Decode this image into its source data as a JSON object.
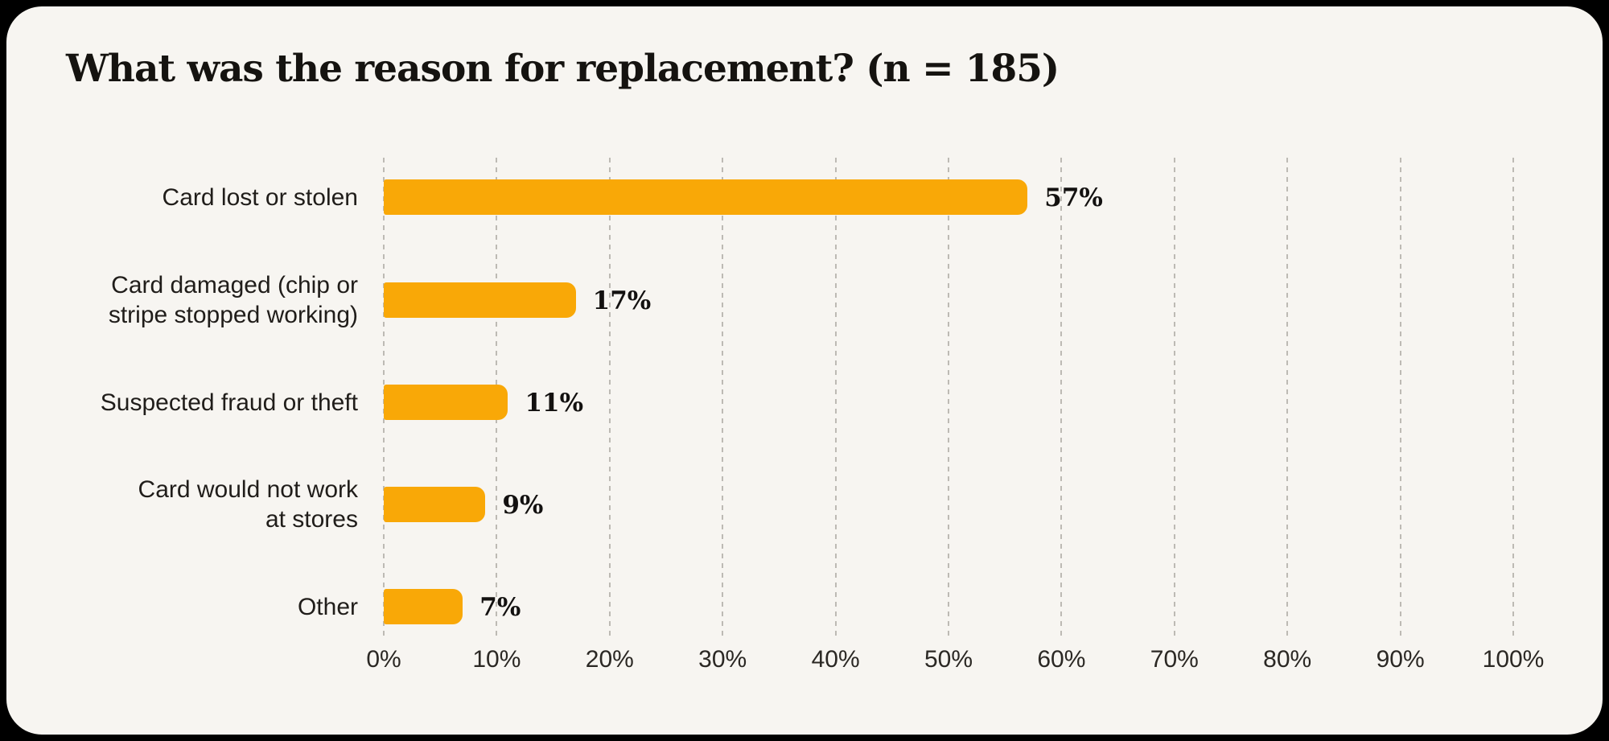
{
  "title": "What was the reason for replacement? (n = 185)",
  "colors": {
    "page_background": "#000000",
    "card_background": "#F7F5F1",
    "bar": "#F9A807",
    "gridline": "#BDBAB4",
    "text": "#151310"
  },
  "chart_data": {
    "type": "bar",
    "orientation": "horizontal",
    "title": "What was the reason for replacement? (n = 185)",
    "categories": [
      "Card lost or stolen",
      "Card damaged (chip or stripe stopped working)",
      "Suspected fraud or theft",
      "Card would not work at stores",
      "Other"
    ],
    "category_display_lines": [
      [
        "Card lost or stolen"
      ],
      [
        "Card damaged (chip or",
        "stripe stopped working)"
      ],
      [
        "Suspected fraud or theft"
      ],
      [
        "Card would not work",
        "at stores"
      ],
      [
        "Other"
      ]
    ],
    "values": [
      57,
      17,
      11,
      9,
      7
    ],
    "value_labels": [
      "57%",
      "17%",
      "11%",
      "9%",
      "7%"
    ],
    "xlabel": "",
    "ylabel": "",
    "xlim": [
      0,
      100
    ],
    "x_ticks": [
      "0%",
      "10%",
      "20%",
      "30%",
      "40%",
      "50%",
      "60%",
      "70%",
      "80%",
      "90%",
      "100%"
    ],
    "x_tick_values": [
      0,
      10,
      20,
      30,
      40,
      50,
      60,
      70,
      80,
      90,
      100
    ],
    "grid": "vertical-dashed",
    "legend": "none"
  }
}
